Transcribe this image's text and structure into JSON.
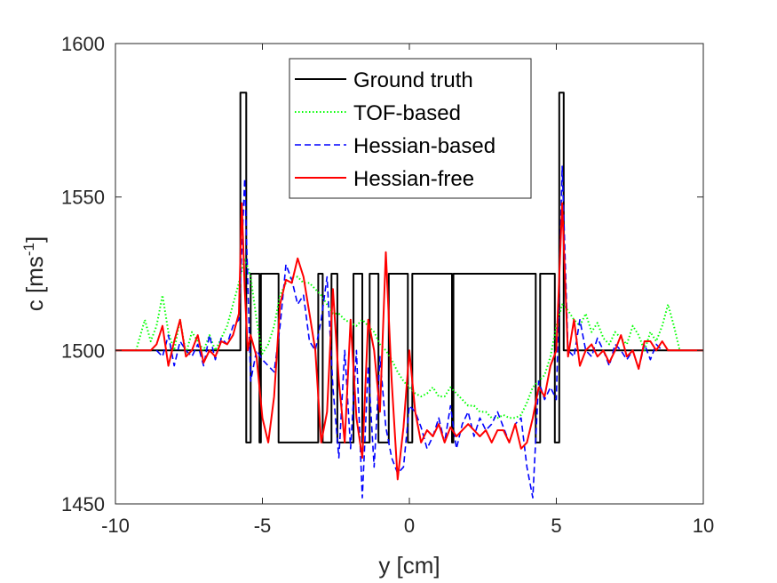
{
  "chart_data": {
    "type": "line",
    "title": "",
    "xlabel": "y [cm]",
    "ylabel_base": "c [ms",
    "ylabel_sup": "-1",
    "ylabel_close": "]",
    "xlim": [
      -10,
      10
    ],
    "ylim": [
      1450,
      1600
    ],
    "xticks": [
      -10,
      -5,
      0,
      5,
      10
    ],
    "xtick_labels": [
      "-10",
      "-5",
      "0",
      "5",
      "10"
    ],
    "yticks": [
      1450,
      1500,
      1550,
      1600
    ],
    "ytick_labels": [
      "1450",
      "1500",
      "1550",
      "1600"
    ],
    "legend_position": "top-center",
    "series": [
      {
        "name": "Ground truth",
        "color": "#000000",
        "style": "solid",
        "x": [
          -10,
          -5.75,
          -5.75,
          -5.55,
          -5.55,
          -5.4,
          -5.4,
          -5.1,
          -5.1,
          -5.05,
          -5.05,
          -4.45,
          -4.45,
          -3.1,
          -3.1,
          -2.95,
          -2.95,
          -2.65,
          -2.65,
          -2.45,
          -2.45,
          -1.9,
          -1.9,
          -1.6,
          -1.6,
          -1.35,
          -1.35,
          -1.05,
          -1.05,
          -0.7,
          -0.7,
          -0.05,
          -0.05,
          0.1,
          0.1,
          1.45,
          1.45,
          1.5,
          1.5,
          4.3,
          4.3,
          4.45,
          4.45,
          4.95,
          4.95,
          5.1,
          5.1,
          5.25,
          5.25,
          5.45,
          5.45,
          10
        ],
        "values": [
          1500,
          1500,
          1584,
          1584,
          1470,
          1470,
          1525,
          1525,
          1470,
          1470,
          1525,
          1525,
          1470,
          1470,
          1525,
          1525,
          1470,
          1470,
          1525,
          1525,
          1470,
          1470,
          1525,
          1525,
          1470,
          1470,
          1525,
          1525,
          1470,
          1470,
          1525,
          1525,
          1470,
          1470,
          1525,
          1525,
          1470,
          1470,
          1525,
          1525,
          1470,
          1470,
          1525,
          1525,
          1470,
          1470,
          1584,
          1584,
          1500,
          1500,
          1500,
          1500
        ]
      },
      {
        "name": "TOF-based",
        "color": "#00ff00",
        "style": "dotted",
        "x": [
          -9.3,
          -9.0,
          -8.8,
          -8.6,
          -8.4,
          -8.2,
          -8.0,
          -7.8,
          -7.6,
          -7.4,
          -7.2,
          -7.0,
          -6.8,
          -6.6,
          -6.4,
          -6.2,
          -6.0,
          -5.8,
          -5.6,
          -5.4,
          -5.2,
          -5.0,
          -4.8,
          -4.6,
          -4.4,
          -4.2,
          -4.0,
          -3.8,
          -3.6,
          -3.4,
          -3.2,
          -3.0,
          -2.8,
          -2.6,
          -2.4,
          -2.2,
          -2.0,
          -1.8,
          -1.6,
          -1.4,
          -1.2,
          -1.0,
          -0.8,
          -0.6,
          -0.4,
          -0.2,
          0.0,
          0.2,
          0.4,
          0.6,
          0.8,
          1.0,
          1.2,
          1.4,
          1.6,
          1.8,
          2.0,
          2.2,
          2.4,
          2.6,
          2.8,
          3.0,
          3.2,
          3.4,
          3.6,
          3.8,
          4.0,
          4.2,
          4.4,
          4.6,
          4.8,
          5.0,
          5.2,
          5.4,
          5.6,
          5.8,
          6.0,
          6.2,
          6.4,
          6.6,
          6.8,
          7.0,
          7.2,
          7.4,
          7.6,
          7.8,
          8.0,
          8.2,
          8.4,
          8.6,
          8.8,
          9.0,
          9.2
        ],
        "values": [
          1500,
          1510,
          1503,
          1508,
          1518,
          1506,
          1500,
          1510,
          1499,
          1506,
          1503,
          1500,
          1505,
          1500,
          1504,
          1508,
          1515,
          1522,
          1530,
          1524,
          1510,
          1499,
          1502,
          1508,
          1518,
          1522,
          1524,
          1524,
          1522,
          1522,
          1520,
          1518,
          1515,
          1512,
          1512,
          1510,
          1509,
          1508,
          1510,
          1508,
          1506,
          1502,
          1500,
          1497,
          1493,
          1490,
          1488,
          1486,
          1485,
          1486,
          1488,
          1485,
          1485,
          1488,
          1486,
          1484,
          1482,
          1482,
          1480,
          1480,
          1478,
          1478,
          1479,
          1478,
          1478,
          1479,
          1483,
          1488,
          1490,
          1492,
          1498,
          1508,
          1515,
          1513,
          1510,
          1508,
          1512,
          1506,
          1509,
          1504,
          1502,
          1506,
          1504,
          1502,
          1508,
          1505,
          1500,
          1506,
          1503,
          1508,
          1515,
          1508,
          1500
        ]
      },
      {
        "name": "Hessian-based",
        "color": "#0000ff",
        "style": "dashed",
        "x": [
          -8.6,
          -8.4,
          -8.2,
          -8.0,
          -7.8,
          -7.6,
          -7.4,
          -7.2,
          -7.0,
          -6.8,
          -6.6,
          -6.4,
          -6.2,
          -6.0,
          -5.8,
          -5.6,
          -5.4,
          -5.2,
          -5.0,
          -4.8,
          -4.6,
          -4.4,
          -4.2,
          -4.0,
          -3.8,
          -3.6,
          -3.4,
          -3.2,
          -3.0,
          -2.8,
          -2.6,
          -2.4,
          -2.2,
          -2.0,
          -1.8,
          -1.6,
          -1.4,
          -1.2,
          -1.0,
          -0.8,
          -0.6,
          -0.4,
          -0.2,
          0.0,
          0.2,
          0.4,
          0.6,
          0.8,
          1.0,
          1.2,
          1.4,
          1.6,
          1.8,
          2.0,
          2.2,
          2.4,
          2.6,
          2.8,
          3.0,
          3.2,
          3.4,
          3.6,
          3.8,
          4.0,
          4.2,
          4.4,
          4.6,
          4.8,
          5.0,
          5.2,
          5.4,
          5.6,
          5.8,
          6.0,
          6.2,
          6.4,
          6.6,
          6.8,
          7.0,
          7.2,
          7.4,
          7.6,
          7.8,
          8.0,
          8.2,
          8.4,
          8.6
        ],
        "values": [
          1500,
          1498,
          1505,
          1495,
          1503,
          1500,
          1498,
          1502,
          1495,
          1505,
          1497,
          1504,
          1502,
          1508,
          1510,
          1556,
          1490,
          1500,
          1497,
          1495,
          1493,
          1508,
          1528,
          1523,
          1515,
          1518,
          1503,
          1500,
          1510,
          1524,
          1488,
          1465,
          1500,
          1468,
          1500,
          1452,
          1495,
          1462,
          1498,
          1475,
          1465,
          1460,
          1462,
          1482,
          1480,
          1475,
          1468,
          1472,
          1478,
          1470,
          1482,
          1468,
          1476,
          1480,
          1472,
          1478,
          1474,
          1476,
          1480,
          1475,
          1470,
          1476,
          1478,
          1462,
          1452,
          1490,
          1484,
          1488,
          1484,
          1560,
          1500,
          1498,
          1510,
          1500,
          1498,
          1504,
          1500,
          1495,
          1502,
          1500,
          1497,
          1500,
          1494,
          1502,
          1497,
          1502,
          1500
        ]
      },
      {
        "name": "Hessian-free",
        "color": "#ff0000",
        "style": "solid",
        "x": [
          -10,
          -8.8,
          -8.6,
          -8.4,
          -8.2,
          -8.0,
          -7.8,
          -7.6,
          -7.4,
          -7.2,
          -7.0,
          -6.8,
          -6.6,
          -6.4,
          -6.2,
          -6.0,
          -5.8,
          -5.7,
          -5.6,
          -5.5,
          -5.4,
          -5.2,
          -5.0,
          -4.8,
          -4.6,
          -4.4,
          -4.2,
          -4.0,
          -3.8,
          -3.6,
          -3.4,
          -3.2,
          -3.0,
          -2.8,
          -2.6,
          -2.4,
          -2.2,
          -2.0,
          -1.8,
          -1.6,
          -1.4,
          -1.2,
          -1.0,
          -0.8,
          -0.6,
          -0.4,
          -0.2,
          0.0,
          0.2,
          0.4,
          0.6,
          0.8,
          1.0,
          1.2,
          1.4,
          1.6,
          1.8,
          2.0,
          2.2,
          2.4,
          2.6,
          2.8,
          3.0,
          3.2,
          3.4,
          3.6,
          3.8,
          4.0,
          4.2,
          4.4,
          4.6,
          4.8,
          5.0,
          5.2,
          5.4,
          5.6,
          5.8,
          6.0,
          6.2,
          6.4,
          6.6,
          6.8,
          7.0,
          7.2,
          7.4,
          7.6,
          7.8,
          8.0,
          8.2,
          8.4,
          8.6,
          8.8,
          10
        ],
        "values": [
          1500,
          1500,
          1502,
          1508,
          1495,
          1503,
          1510,
          1498,
          1500,
          1505,
          1496,
          1500,
          1498,
          1503,
          1502,
          1505,
          1512,
          1548,
          1520,
          1500,
          1505,
          1498,
          1478,
          1470,
          1485,
          1515,
          1523,
          1522,
          1530,
          1524,
          1512,
          1500,
          1470,
          1480,
          1520,
          1490,
          1470,
          1510,
          1478,
          1465,
          1510,
          1500,
          1480,
          1532,
          1490,
          1458,
          1475,
          1500,
          1480,
          1470,
          1474,
          1472,
          1476,
          1470,
          1475,
          1472,
          1474,
          1476,
          1474,
          1472,
          1474,
          1470,
          1474,
          1474,
          1470,
          1476,
          1468,
          1470,
          1478,
          1488,
          1485,
          1495,
          1500,
          1548,
          1498,
          1510,
          1495,
          1500,
          1502,
          1498,
          1500,
          1496,
          1500,
          1505,
          1498,
          1500,
          1494,
          1503,
          1503,
          1500,
          1503,
          1500,
          1500
        ]
      }
    ]
  }
}
